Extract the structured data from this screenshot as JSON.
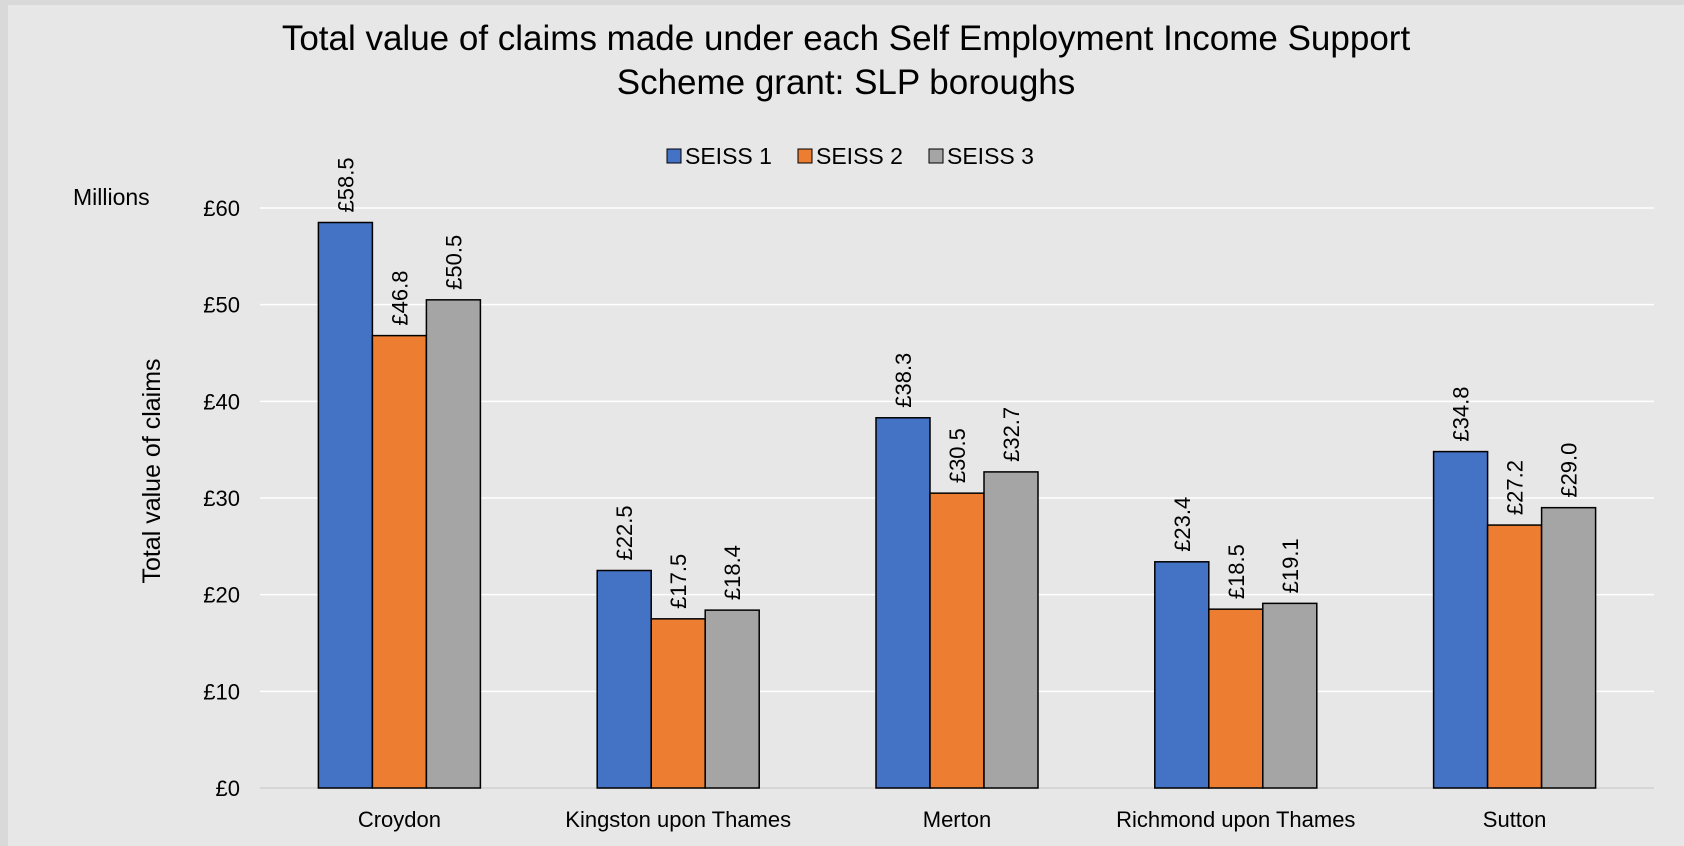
{
  "chart_data": {
    "type": "bar",
    "title_lines": [
      "Total value of claims made under each Self Employment Income Support",
      "Scheme grant: SLP boroughs"
    ],
    "ylabel": "Total value of claims",
    "unit_label": "Millions",
    "categories": [
      "Croydon",
      "Kingston upon Thames",
      "Merton",
      "Richmond upon Thames",
      "Sutton"
    ],
    "series": [
      {
        "name": "SEISS 1",
        "color": "#4472c4",
        "values": [
          58.5,
          22.5,
          38.3,
          23.4,
          34.8
        ],
        "labels": [
          "£58.5",
          "£22.5",
          "£38.3",
          "£23.4",
          "£34.8"
        ]
      },
      {
        "name": "SEISS 2",
        "color": "#ed7d31",
        "values": [
          46.8,
          17.5,
          30.5,
          18.5,
          27.2
        ],
        "labels": [
          "£46.8",
          "£17.5",
          "£30.5",
          "£18.5",
          "£27.2"
        ]
      },
      {
        "name": "SEISS 3",
        "color": "#a5a5a5",
        "values": [
          50.5,
          18.4,
          32.7,
          19.1,
          29.0
        ],
        "labels": [
          "£50.5",
          "£18.4",
          "£32.7",
          "£19.1",
          "£29.0"
        ]
      }
    ],
    "ylim": [
      0,
      60
    ],
    "yticks": [
      0,
      10,
      20,
      30,
      40,
      50,
      60
    ],
    "ytick_labels": [
      "£0",
      "£10",
      "£20",
      "£30",
      "£40",
      "£50",
      "£60"
    ],
    "grid": true,
    "legend_position": "top-center"
  }
}
